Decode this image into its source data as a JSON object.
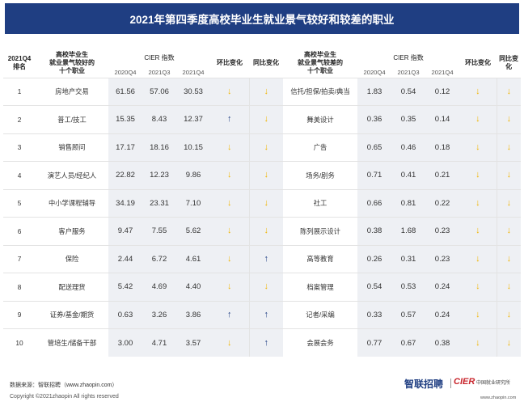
{
  "title": "2021年第四季度高校毕业生就业景气较好和较差的职业",
  "header": {
    "rank": "2021Q4\n排名",
    "left_job": "高校毕业生\n就业景气较好的\n十个职业",
    "right_job": "高校毕业生\n就业景气较差的\n十个职业",
    "cier_index": "CIER  指数",
    "q1": "2020Q4",
    "q2": "2021Q3",
    "q3": "2021Q4",
    "qoq": "环比变化",
    "yoy": "同比变化"
  },
  "rows": [
    {
      "rank": "1",
      "good": "房地产交易",
      "g1": "61.56",
      "g2": "57.06",
      "g3": "30.53",
      "gqoq": "down",
      "gyoy": "down",
      "bad": "信托/担保/拍卖/典当",
      "b1": "1.83",
      "b2": "0.54",
      "b3": "0.12",
      "bqoq": "down",
      "byoy": "down"
    },
    {
      "rank": "2",
      "good": "普工/技工",
      "g1": "15.35",
      "g2": "8.43",
      "g3": "12.37",
      "gqoq": "up",
      "gyoy": "down",
      "bad": "舞美设计",
      "b1": "0.36",
      "b2": "0.35",
      "b3": "0.14",
      "bqoq": "down",
      "byoy": "down"
    },
    {
      "rank": "3",
      "good": "销售顾问",
      "g1": "17.17",
      "g2": "18.16",
      "g3": "10.15",
      "gqoq": "down",
      "gyoy": "down",
      "bad": "广告",
      "b1": "0.65",
      "b2": "0.46",
      "b3": "0.18",
      "bqoq": "down",
      "byoy": "down"
    },
    {
      "rank": "4",
      "good": "演艺人员/经纪人",
      "g1": "22.82",
      "g2": "12.23",
      "g3": "9.86",
      "gqoq": "down",
      "gyoy": "down",
      "bad": "场务/剧务",
      "b1": "0.71",
      "b2": "0.41",
      "b3": "0.21",
      "bqoq": "down",
      "byoy": "down"
    },
    {
      "rank": "5",
      "good": "中小学课程辅导",
      "g1": "34.19",
      "g2": "23.31",
      "g3": "7.10",
      "gqoq": "down",
      "gyoy": "down",
      "bad": "社工",
      "b1": "0.66",
      "b2": "0.81",
      "b3": "0.22",
      "bqoq": "down",
      "byoy": "down"
    },
    {
      "rank": "6",
      "good": "客户服务",
      "g1": "9.47",
      "g2": "7.55",
      "g3": "5.62",
      "gqoq": "down",
      "gyoy": "down",
      "bad": "陈列展示设计",
      "b1": "0.38",
      "b2": "1.68",
      "b3": "0.23",
      "bqoq": "down",
      "byoy": "down"
    },
    {
      "rank": "7",
      "good": "保险",
      "g1": "2.44",
      "g2": "6.72",
      "g3": "4.61",
      "gqoq": "down",
      "gyoy": "up",
      "bad": "高等教育",
      "b1": "0.26",
      "b2": "0.31",
      "b3": "0.23",
      "bqoq": "down",
      "byoy": "down"
    },
    {
      "rank": "8",
      "good": "配送理货",
      "g1": "5.42",
      "g2": "4.69",
      "g3": "4.40",
      "gqoq": "down",
      "gyoy": "down",
      "bad": "档案管理",
      "b1": "0.54",
      "b2": "0.53",
      "b3": "0.24",
      "bqoq": "down",
      "byoy": "down"
    },
    {
      "rank": "9",
      "good": "证券/基金/期货",
      "g1": "0.63",
      "g2": "3.26",
      "g3": "3.86",
      "gqoq": "up",
      "gyoy": "up",
      "bad": "记者/采编",
      "b1": "0.33",
      "b2": "0.57",
      "b3": "0.24",
      "bqoq": "down",
      "byoy": "down"
    },
    {
      "rank": "10",
      "good": "管培生/储备干部",
      "g1": "3.00",
      "g2": "4.71",
      "g3": "3.57",
      "gqoq": "down",
      "gyoy": "up",
      "bad": "会展会务",
      "b1": "0.77",
      "b2": "0.67",
      "b3": "0.38",
      "bqoq": "down",
      "byoy": "down"
    }
  ],
  "colors": {
    "title_bg": "#1f3e82",
    "arrow_up": "#1f3e82",
    "arrow_down": "#f0b400",
    "band": "#eef0f4"
  },
  "footer": {
    "source": "数据来源：智联招聘（www.zhaopin.com）",
    "copyright": "Copyright ©2021zhaopin All rights reserved",
    "logo_zl": "智联招聘",
    "logo_cier": "CIER",
    "logo_cier_cn": "中国就业研究所",
    "logo_url": "www.zhaopin.com"
  }
}
